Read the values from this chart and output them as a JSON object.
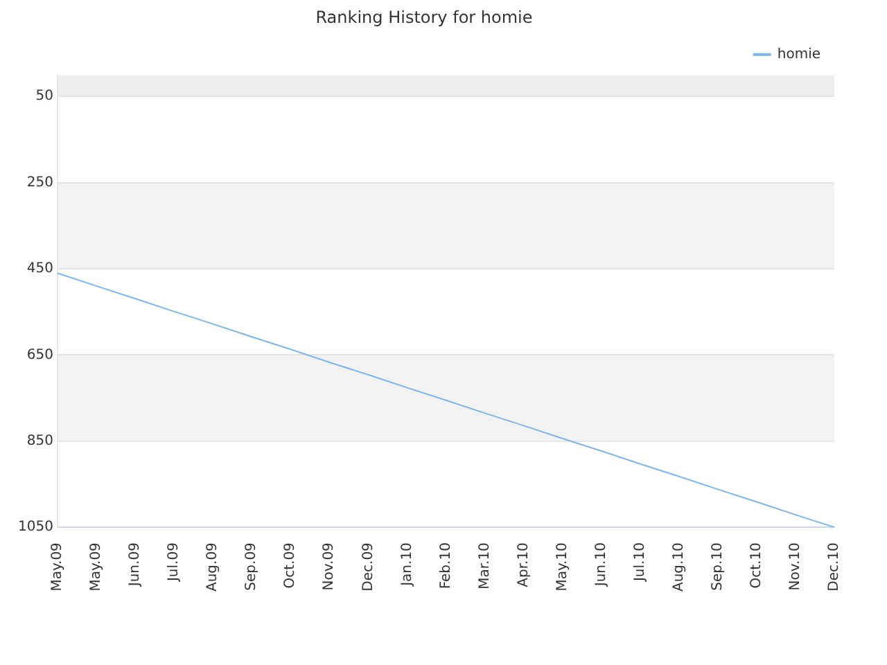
{
  "chart_data": {
    "type": "line",
    "title": "Ranking History for homie",
    "categories": [
      "May.09",
      "May.09",
      "Jun.09",
      "Jul.09",
      "Aug.09",
      "Sep.09",
      "Oct.09",
      "Nov.09",
      "Dec.09",
      "Jan.10",
      "Feb.10",
      "Mar.10",
      "Apr.10",
      "May.10",
      "Jun.10",
      "Jul.10",
      "Aug.10",
      "Sep.10",
      "Oct.10",
      "Nov.10",
      "Dec.10"
    ],
    "series": [
      {
        "name": "homie",
        "color": "#7cb5ec",
        "values": [
          460,
          490,
          519,
          549,
          578,
          608,
          637,
          667,
          696,
          726,
          755,
          785,
          814,
          844,
          873,
          903,
          932,
          962,
          991,
          1021,
          1050
        ]
      }
    ],
    "ylim": [
      1050,
      1
    ],
    "yticks": [
      50,
      250,
      450,
      650,
      850,
      1050
    ],
    "bands": [
      {
        "axis": "y",
        "from": 1,
        "to": 50,
        "color": "#eeeeee"
      },
      {
        "axis": "y",
        "from": 250,
        "to": 450,
        "color": "#f2f2f2"
      },
      {
        "axis": "y",
        "from": 650,
        "to": 850,
        "color": "#f2f2f2"
      }
    ],
    "grid": "y",
    "legend": "top right",
    "marker": "none",
    "line_style": "solid"
  }
}
